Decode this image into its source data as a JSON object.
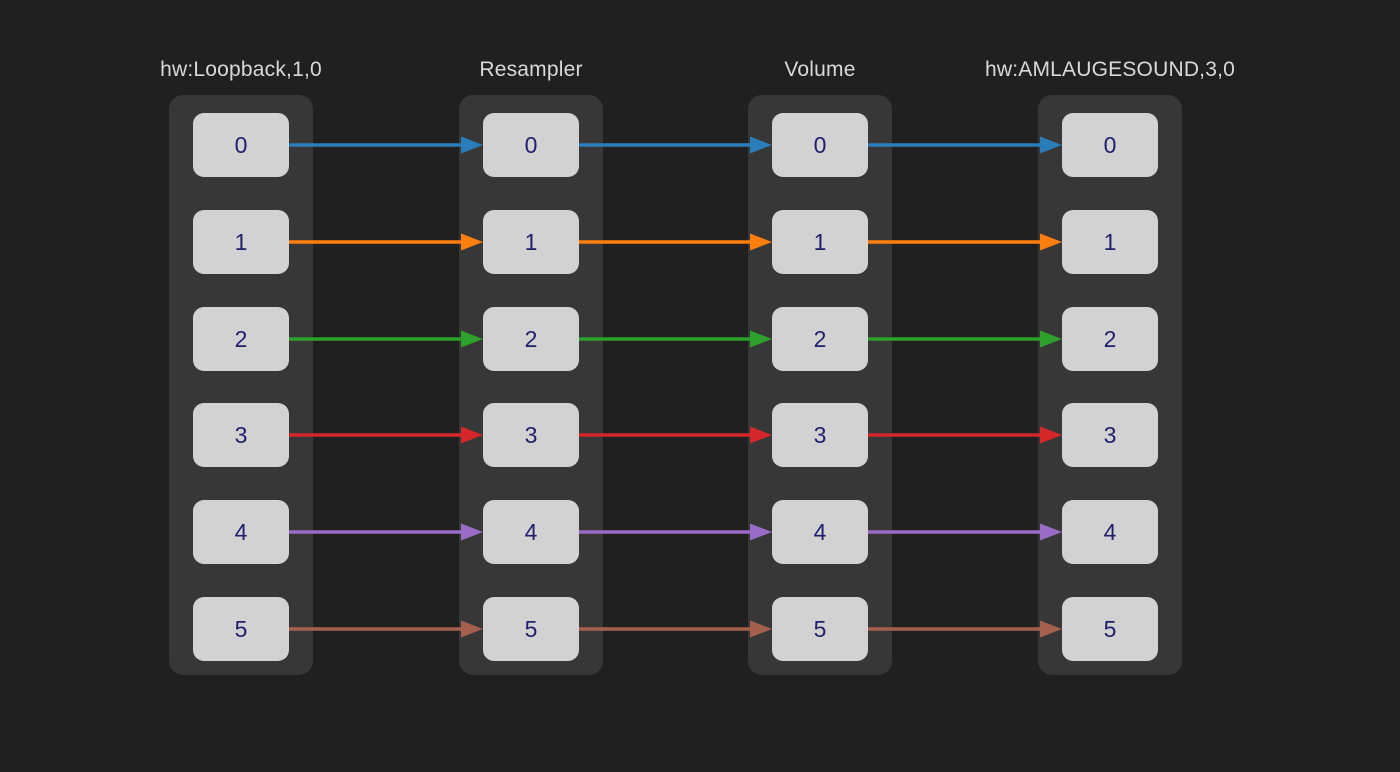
{
  "diagram": {
    "columns": [
      {
        "title": "hw:Loopback,1,0",
        "channels": [
          "0",
          "1",
          "2",
          "3",
          "4",
          "5"
        ]
      },
      {
        "title": "Resampler",
        "channels": [
          "0",
          "1",
          "2",
          "3",
          "4",
          "5"
        ]
      },
      {
        "title": "Volume",
        "channels": [
          "0",
          "1",
          "2",
          "3",
          "4",
          "5"
        ]
      },
      {
        "title": "hw:AMLAUGESOUND,3,0",
        "channels": [
          "0",
          "1",
          "2",
          "3",
          "4",
          "5"
        ]
      }
    ],
    "connections": [
      {
        "channel": "0",
        "color": "#2b7db9"
      },
      {
        "channel": "1",
        "color": "#ff7f0e"
      },
      {
        "channel": "2",
        "color": "#2ea02c"
      },
      {
        "channel": "3",
        "color": "#d62728"
      },
      {
        "channel": "4",
        "color": "#9a6cc8"
      },
      {
        "channel": "5",
        "color": "#a5604d"
      }
    ],
    "colors": {
      "background": "#202020",
      "column_background": "#373737",
      "box_background": "#d2d2d2",
      "box_text": "#1f1f6e",
      "title_text": "#d9d9d9"
    }
  }
}
